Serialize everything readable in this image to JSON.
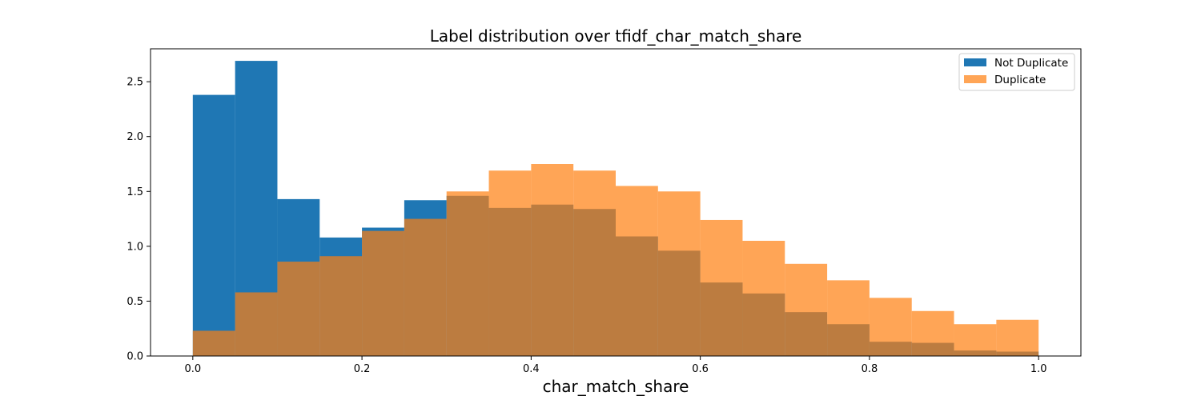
{
  "chart_data": {
    "type": "histogram",
    "title": "Label distribution over tfidf_char_match_share",
    "xlabel": "char_match_share",
    "ylabel": "",
    "xlim": [
      -0.05,
      1.05
    ],
    "ylim": [
      0,
      2.8
    ],
    "xticks": [
      "0.0",
      "0.2",
      "0.4",
      "0.6",
      "0.8",
      "1.0"
    ],
    "xtick_values": [
      0,
      0.2,
      0.4,
      0.6,
      0.8,
      1.0
    ],
    "yticks": [
      "0.0",
      "0.5",
      "1.0",
      "1.5",
      "2.0",
      "2.5"
    ],
    "ytick_values": [
      0,
      0.5,
      1.0,
      1.5,
      2.0,
      2.5
    ],
    "bin_edges": [
      0,
      0.05,
      0.1,
      0.15,
      0.2,
      0.25,
      0.3,
      0.35,
      0.4,
      0.45,
      0.5,
      0.55,
      0.6,
      0.65,
      0.7,
      0.75,
      0.8,
      0.85,
      0.9,
      0.95,
      1.0
    ],
    "legend_position": "top-right",
    "grid": false,
    "series": [
      {
        "name": "Not Duplicate",
        "color": "#1f77b4",
        "opacity": 1.0,
        "values": [
          2.38,
          2.69,
          1.43,
          1.08,
          1.17,
          1.42,
          1.46,
          1.35,
          1.38,
          1.34,
          1.09,
          0.96,
          0.67,
          0.57,
          0.4,
          0.29,
          0.13,
          0.12,
          0.05,
          0.04
        ]
      },
      {
        "name": "Duplicate",
        "color": "#ff7f0e",
        "opacity": 0.7,
        "values": [
          0.23,
          0.58,
          0.86,
          0.91,
          1.14,
          1.25,
          1.5,
          1.69,
          1.75,
          1.69,
          1.55,
          1.5,
          1.24,
          1.05,
          0.84,
          0.69,
          0.53,
          0.41,
          0.29,
          0.33
        ]
      }
    ]
  }
}
